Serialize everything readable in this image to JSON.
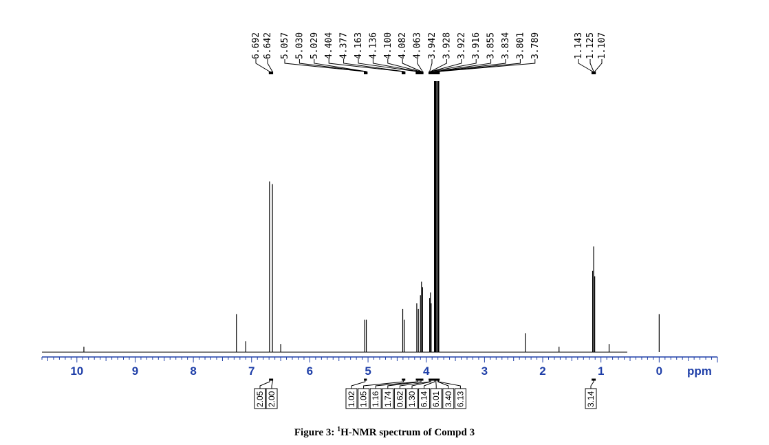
{
  "caption": {
    "prefix": "Figure 3: ",
    "sup": "1",
    "rest": "H-NMR spectrum of Compd 3"
  },
  "chart_data": {
    "type": "line",
    "title": "",
    "xlabel": "ppm",
    "xlim": [
      10.6,
      -1.0
    ],
    "x_ticks": [
      "10",
      "9",
      "8",
      "7",
      "6",
      "5",
      "4",
      "3",
      "2",
      "1",
      "0"
    ],
    "axis_color": "#1f3fa8",
    "peak_labels": [
      {
        "text": "6.692",
        "ppm": 6.692
      },
      {
        "text": "6.642",
        "ppm": 6.642
      },
      {
        "text": "5.057",
        "ppm": 5.057
      },
      {
        "text": "5.030",
        "ppm": 5.03
      },
      {
        "text": "5.029",
        "ppm": 5.029
      },
      {
        "text": "4.404",
        "ppm": 4.404
      },
      {
        "text": "4.377",
        "ppm": 4.377
      },
      {
        "text": "4.163",
        "ppm": 4.163
      },
      {
        "text": "4.136",
        "ppm": 4.136
      },
      {
        "text": "4.100",
        "ppm": 4.1
      },
      {
        "text": "4.082",
        "ppm": 4.082
      },
      {
        "text": "4.063",
        "ppm": 4.063
      },
      {
        "text": "3.942",
        "ppm": 3.942
      },
      {
        "text": "3.928",
        "ppm": 3.928
      },
      {
        "text": "3.922",
        "ppm": 3.922
      },
      {
        "text": "3.916",
        "ppm": 3.916
      },
      {
        "text": "3.855",
        "ppm": 3.855
      },
      {
        "text": "3.834",
        "ppm": 3.834
      },
      {
        "text": "3.801",
        "ppm": 3.801
      },
      {
        "text": "3.789",
        "ppm": 3.789
      },
      {
        "text": "1.143",
        "ppm": 1.143
      },
      {
        "text": "1.125",
        "ppm": 1.125
      },
      {
        "text": "1.107",
        "ppm": 1.107
      }
    ],
    "integrals": [
      {
        "text": "2.05",
        "ppm": 6.69
      },
      {
        "text": "2.00",
        "ppm": 6.64
      },
      {
        "text": "1.02",
        "ppm": 5.05
      },
      {
        "text": "1.05",
        "ppm": 4.39
      },
      {
        "text": "1.16",
        "ppm": 4.15
      },
      {
        "text": "1.74",
        "ppm": 4.09
      },
      {
        "text": "0.62",
        "ppm": 3.94
      },
      {
        "text": "1.30",
        "ppm": 3.92
      },
      {
        "text": "6.14",
        "ppm": 3.855
      },
      {
        "text": "6.01",
        "ppm": 3.834
      },
      {
        "text": "3.40",
        "ppm": 3.8
      },
      {
        "text": "6.13",
        "ppm": 3.789
      },
      {
        "text": "3.14",
        "ppm": 1.125
      }
    ],
    "signals": [
      {
        "ppm": 9.88,
        "height": 0.02
      },
      {
        "ppm": 7.26,
        "height": 0.14
      },
      {
        "ppm": 7.1,
        "height": 0.04
      },
      {
        "ppm": 6.692,
        "height": 0.63
      },
      {
        "ppm": 6.642,
        "height": 0.62
      },
      {
        "ppm": 6.5,
        "height": 0.03
      },
      {
        "ppm": 5.057,
        "height": 0.12
      },
      {
        "ppm": 5.03,
        "height": 0.12
      },
      {
        "ppm": 4.404,
        "height": 0.16
      },
      {
        "ppm": 4.377,
        "height": 0.12
      },
      {
        "ppm": 4.163,
        "height": 0.18
      },
      {
        "ppm": 4.136,
        "height": 0.16
      },
      {
        "ppm": 4.1,
        "height": 0.21
      },
      {
        "ppm": 4.082,
        "height": 0.26
      },
      {
        "ppm": 4.063,
        "height": 0.24
      },
      {
        "ppm": 3.942,
        "height": 0.2
      },
      {
        "ppm": 3.928,
        "height": 0.22
      },
      {
        "ppm": 3.916,
        "height": 0.18
      },
      {
        "ppm": 3.855,
        "height": 1.0
      },
      {
        "ppm": 3.834,
        "height": 1.0
      },
      {
        "ppm": 3.801,
        "height": 1.0
      },
      {
        "ppm": 3.789,
        "height": 1.0
      },
      {
        "ppm": 2.3,
        "height": 0.07
      },
      {
        "ppm": 1.72,
        "height": 0.02
      },
      {
        "ppm": 1.143,
        "height": 0.3
      },
      {
        "ppm": 1.125,
        "height": 0.39
      },
      {
        "ppm": 1.107,
        "height": 0.28
      },
      {
        "ppm": 0.86,
        "height": 0.03
      },
      {
        "ppm": 0.0,
        "height": 0.14
      }
    ]
  }
}
